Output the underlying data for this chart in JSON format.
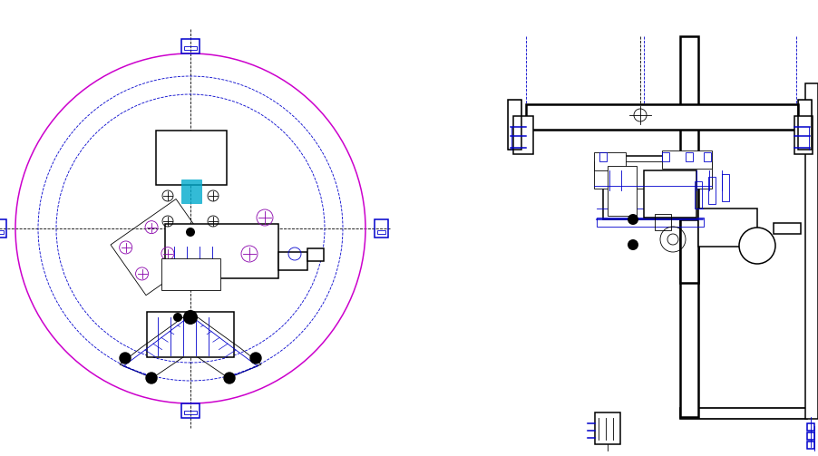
{
  "bg_color": "#ffffff",
  "black": "#000000",
  "blue": "#0000cc",
  "magenta": "#cc00cc",
  "cyan": "#00aacc",
  "gray": "#666666",
  "purple": "#8800aa",
  "lw1": 0.6,
  "lw2": 1.1,
  "lw3": 1.8
}
